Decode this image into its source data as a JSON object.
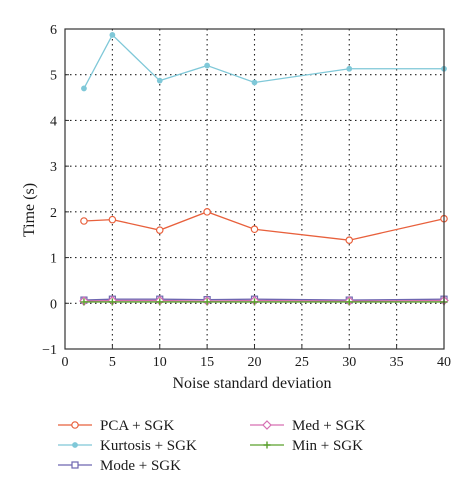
{
  "chart_data": {
    "type": "line",
    "xlabel": "Noise standard deviation",
    "ylabel": "Time (s)",
    "xlim": [
      0,
      40
    ],
    "ylim": [
      -1,
      6
    ],
    "x_ticks": [
      0,
      5,
      10,
      15,
      20,
      25,
      30,
      35,
      40
    ],
    "y_ticks": [
      -1,
      0,
      1,
      2,
      3,
      4,
      5,
      6
    ],
    "grid": "dotted",
    "legend_placement": "below-plot",
    "series": [
      {
        "name": "PCA + SGK",
        "color": "#e8603c",
        "marker": "circle",
        "x": [
          2,
          5,
          10,
          15,
          20,
          30,
          40
        ],
        "y": [
          1.8,
          1.83,
          1.6,
          2.0,
          1.62,
          1.38,
          1.85
        ]
      },
      {
        "name": "Kurtosis + SGK",
        "color": "#7fc8d8",
        "marker": "dot",
        "x": [
          2,
          5,
          10,
          15,
          20,
          30,
          40
        ],
        "y": [
          4.7,
          5.87,
          4.87,
          5.2,
          4.83,
          5.13,
          5.13
        ]
      },
      {
        "name": "Mode + SGK",
        "color": "#6e66b0",
        "marker": "square",
        "x": [
          2,
          5,
          10,
          15,
          20,
          30,
          40
        ],
        "y": [
          0.07,
          0.09,
          0.09,
          0.08,
          0.09,
          0.07,
          0.09
        ]
      },
      {
        "name": "Med + SGK",
        "color": "#d66fb2",
        "marker": "diamond",
        "x": [
          2,
          5,
          10,
          15,
          20,
          30,
          40
        ],
        "y": [
          0.05,
          0.06,
          0.06,
          0.05,
          0.06,
          0.05,
          0.06
        ]
      },
      {
        "name": "Min + SGK",
        "color": "#5aa02c",
        "marker": "plus",
        "x": [
          2,
          5,
          10,
          15,
          20,
          30,
          40
        ],
        "y": [
          0.03,
          0.03,
          0.03,
          0.03,
          0.03,
          0.03,
          0.03
        ]
      }
    ]
  }
}
